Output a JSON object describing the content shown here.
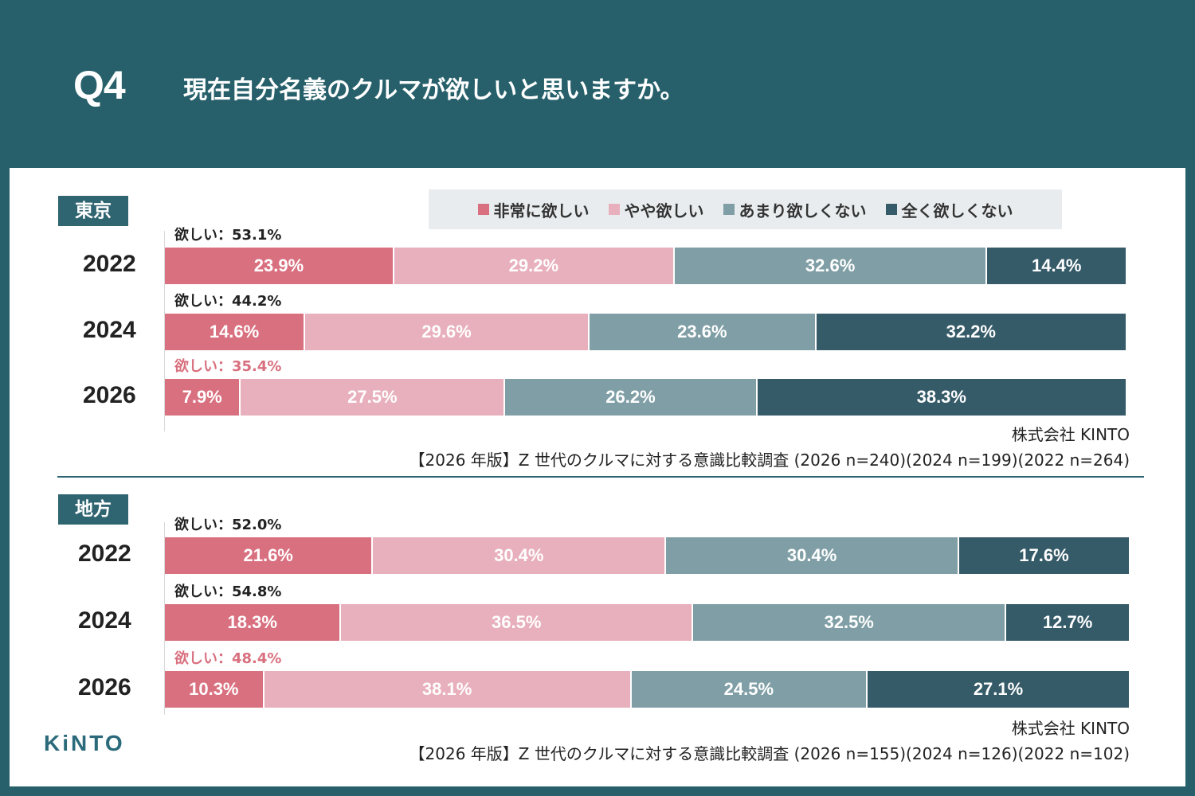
{
  "header": {
    "q_label": "Q4",
    "title": "現在自分名義のクルマが欲しいと思いますか。"
  },
  "colors": [
    "#d9707f",
    "#e8b0bc",
    "#7f9ea5",
    "#355a68"
  ],
  "legend": [
    "非常に欲しい",
    "やや欲しい",
    "あまり欲しくない",
    "全く欲しくない"
  ],
  "brand": "KiNTO",
  "chart_data": [
    {
      "type": "bar",
      "orientation": "horizontal-stacked-100",
      "region": "東京",
      "categories": [
        "2022",
        "2024",
        "2026"
      ],
      "series": [
        {
          "name": "非常に欲しい",
          "values": [
            23.9,
            14.6,
            7.9
          ]
        },
        {
          "name": "やや欲しい",
          "values": [
            29.2,
            29.6,
            27.5
          ]
        },
        {
          "name": "あまり欲しくない",
          "values": [
            32.6,
            23.6,
            26.2
          ]
        },
        {
          "name": "全く欲しくない",
          "values": [
            14.4,
            32.2,
            38.3
          ]
        }
      ],
      "want_labels": [
        "欲しい：53.1%",
        "欲しい：44.2%",
        "欲しい：35.4%"
      ],
      "source_company": "株式会社 KINTO",
      "source_note": "【2026 年版】Z 世代のクルマに対する意識比較調査 (2026 n=240)(2024 n=199)(2022 n=264)"
    },
    {
      "type": "bar",
      "orientation": "horizontal-stacked-100",
      "region": "地方",
      "categories": [
        "2022",
        "2024",
        "2026"
      ],
      "series": [
        {
          "name": "非常に欲しい",
          "values": [
            21.6,
            18.3,
            10.3
          ]
        },
        {
          "name": "やや欲しい",
          "values": [
            30.4,
            36.5,
            38.1
          ]
        },
        {
          "name": "あまり欲しくない",
          "values": [
            30.4,
            32.5,
            24.5
          ]
        },
        {
          "name": "全く欲しくない",
          "values": [
            17.6,
            12.7,
            27.1
          ]
        }
      ],
      "want_labels": [
        "欲しい：52.0%",
        "欲しい：54.8%",
        "欲しい：48.4%"
      ],
      "source_company": "株式会社 KINTO",
      "source_note": "【2026 年版】Z 世代のクルマに対する意識比較調査 (2026 n=155)(2024 n=126)(2022 n=102)"
    }
  ]
}
